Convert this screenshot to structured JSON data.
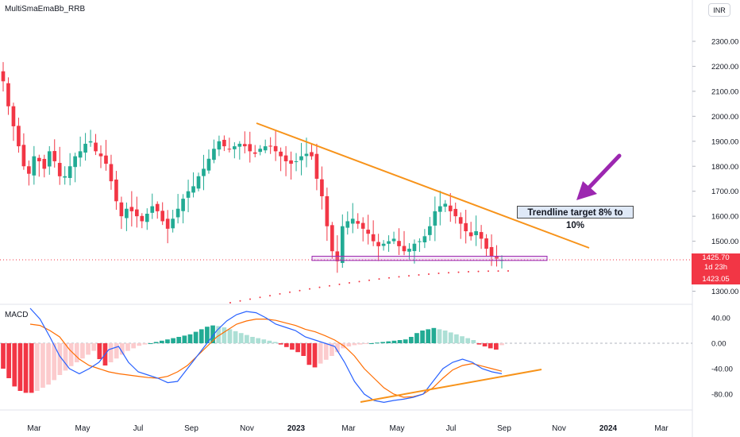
{
  "header": {
    "title": "MultiSmaEmaBb_RRB"
  },
  "currency": "INR",
  "annotation": {
    "text": "Trendline target 8% to 10%"
  },
  "price_tags": {
    "last": "1425.70",
    "countdown": "1d 23h",
    "low": "1423.05"
  },
  "indicator": {
    "name": "MACD"
  },
  "colors": {
    "up": "#22ab94",
    "down": "#f23645",
    "hist_up_strong": "#22ab94",
    "hist_up_weak": "#acdfd5",
    "hist_down_strong": "#f23645",
    "hist_down_weak": "#fccbcd",
    "macd": "#2962ff",
    "signal": "#ff6d00",
    "trendline": "#f7931a",
    "arrow": "#9c27b0",
    "box": "#ce93d8"
  },
  "chart_data": [
    {
      "type": "candlestick",
      "y_ticks": [
        "2300.00",
        "2200.00",
        "2100.00",
        "2000.00",
        "1900.00",
        "1800.00",
        "1700.00",
        "1600.00",
        "1500.00",
        "1400.00",
        "1300.00"
      ],
      "x_ticks": [
        "Mar",
        "May",
        "Jul",
        "Sep",
        "Nov",
        "2023",
        "Mar",
        "May",
        "Jul",
        "Sep",
        "Nov",
        "2024",
        "Mar"
      ],
      "ylim": [
        1255,
        2360
      ],
      "close_series": [
        2140,
        2040,
        1960,
        1880,
        1800,
        1770,
        1840,
        1820,
        1790,
        1860,
        1820,
        1760,
        1760,
        1800,
        1840,
        1860,
        1890,
        1900,
        1860,
        1840,
        1810,
        1740,
        1660,
        1600,
        1630,
        1620,
        1600,
        1580,
        1610,
        1640,
        1620,
        1580,
        1550,
        1590,
        1630,
        1670,
        1700,
        1720,
        1760,
        1790,
        1830,
        1870,
        1900,
        1880,
        1870,
        1880,
        1890,
        1880,
        1860,
        1850,
        1870,
        1880,
        1880,
        1860,
        1840,
        1820,
        1810,
        1820,
        1840,
        1850,
        1840,
        1750,
        1680,
        1560,
        1460,
        1420,
        1560,
        1580,
        1590,
        1570,
        1550,
        1530,
        1500,
        1480,
        1490,
        1500,
        1510,
        1480,
        1460,
        1470,
        1490,
        1500,
        1520,
        1560,
        1620,
        1640,
        1650,
        1620,
        1600,
        1570,
        1540,
        1520,
        1540,
        1510,
        1470,
        1440,
        1430,
        1425.7
      ],
      "trendline": {
        "from": [
          1970,
          "Nov"
        ],
        "to": [
          1470,
          "Nov"
        ]
      },
      "support_zone": [
        1423,
        1440
      ]
    },
    {
      "type": "bar",
      "name": "MACD",
      "y_ticks": [
        "40.00",
        "0.00",
        "-40.00",
        "-80.00"
      ],
      "ylim": [
        -110,
        55
      ],
      "histogram": [
        -40,
        -55,
        -68,
        -75,
        -78,
        -78,
        -75,
        -70,
        -65,
        -58,
        -50,
        -43,
        -36,
        -30,
        -24,
        -18,
        -12,
        -25,
        -35,
        -30,
        -24,
        -18,
        -12,
        -8,
        -4,
        -2,
        0,
        2,
        4,
        6,
        8,
        10,
        12,
        14,
        18,
        22,
        26,
        28,
        27,
        25,
        22,
        19,
        16,
        13,
        10,
        8,
        6,
        4,
        2,
        -2,
        -6,
        -10,
        -14,
        -20,
        -34,
        -38,
        -32,
        -26,
        -20,
        -14,
        -8,
        -5,
        -3,
        -2,
        -1,
        0,
        1,
        2,
        3,
        4,
        5,
        6,
        10,
        16,
        20,
        22,
        24,
        22,
        20,
        17,
        14,
        11,
        8,
        5,
        -2,
        -5,
        -8,
        -10,
        -3
      ]
    }
  ]
}
